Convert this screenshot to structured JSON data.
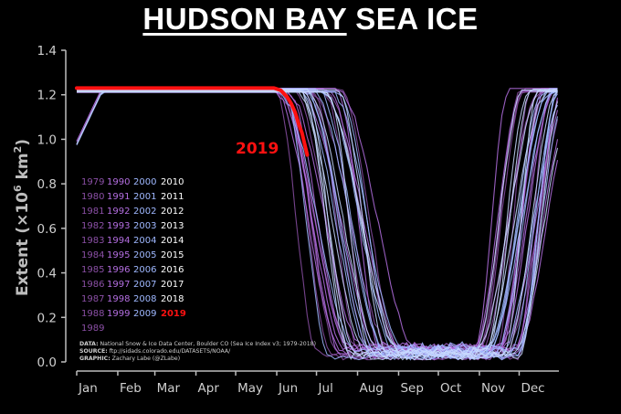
{
  "chart_data": {
    "type": "line",
    "title_part1": "HUDSON BAY",
    "title_part2": "SEA ICE",
    "ylabel": "Extent (×10⁶ km²)",
    "ylabel_plain": "Extent (",
    "ylabel_unit": "×10",
    "ylabel_exp": "6",
    "ylabel_km": " km",
    "ylabel_exp2": "2",
    "ylabel_close": ")",
    "ylim": [
      0,
      1.4
    ],
    "yticks": [
      "0.0",
      "0.2",
      "0.4",
      "0.6",
      "0.8",
      "1.0",
      "1.2",
      "1.4"
    ],
    "xticks": [
      "Jan",
      "Feb",
      "Mar",
      "Apr",
      "May",
      "Jun",
      "Jul",
      "Aug",
      "Sep",
      "Oct",
      "Nov",
      "Dec"
    ],
    "legend_columns": [
      [
        "1979",
        "1980",
        "1981",
        "1982",
        "1983",
        "1984",
        "1985",
        "1986",
        "1987",
        "1988",
        "1989"
      ],
      [
        "1990",
        "1991",
        "1992",
        "1993",
        "1994",
        "1995",
        "1996",
        "1997",
        "1998",
        "1999"
      ],
      [
        "2000",
        "2001",
        "2002",
        "2003",
        "2004",
        "2005",
        "2006",
        "2007",
        "2008",
        "2009"
      ],
      [
        "2010",
        "2011",
        "2012",
        "2013",
        "2014",
        "2015",
        "2016",
        "2017",
        "2018",
        "2019"
      ]
    ],
    "annotation": "2019",
    "highlight_series": {
      "name": "2019",
      "x_day": [
        1,
        30,
        60,
        90,
        120,
        150,
        155,
        160,
        163,
        166,
        169,
        171,
        173,
        175
      ],
      "y": [
        1.23,
        1.23,
        1.23,
        1.23,
        1.23,
        1.23,
        1.22,
        1.19,
        1.16,
        1.12,
        1.06,
        1.03,
        0.98,
        0.93
      ]
    },
    "melt_start_day_range": [
      150,
      200
    ],
    "freeze_start_day_range": [
      300,
      360
    ],
    "sources": {
      "data_label": "DATA:",
      "data_text": " National Snow & Ice Data Center, Boulder CO (Sea Ice Index v3; 1979-2018)",
      "source_label": "SOURCE:",
      "source_text": " ftp://sidads.colorado.edu/DATASETS/NOAA/",
      "graphic_label": "GRAPHIC:",
      "graphic_text": " Zachary Labe (@ZLabe)"
    },
    "colors": {
      "highlight": "#ff1111",
      "decade_1979": "#8a4fa5",
      "decade_1990": "#b36ee0",
      "decade_2000": "#9fb8ff",
      "decade_2010": "#ffffff"
    }
  }
}
